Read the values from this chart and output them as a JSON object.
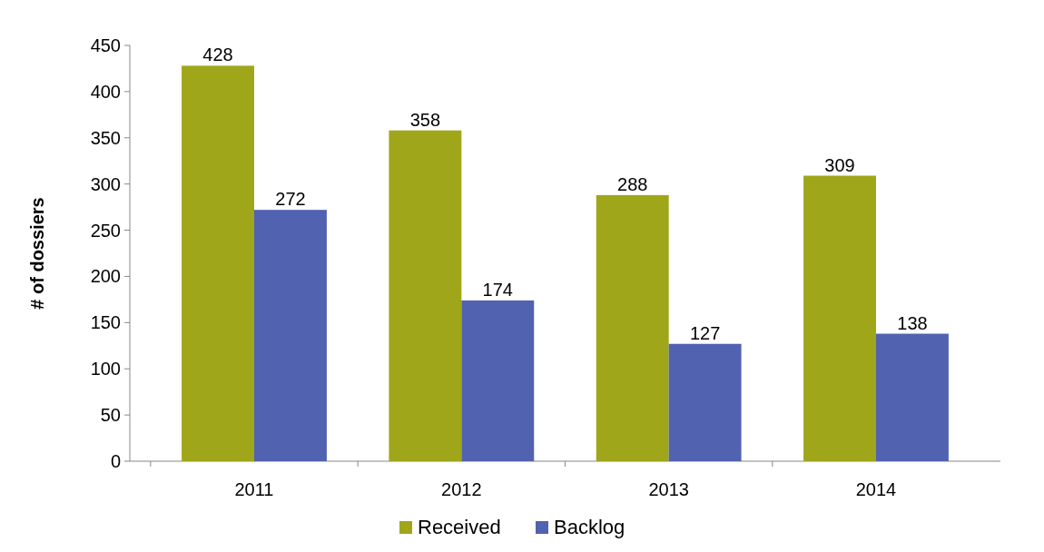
{
  "chart_data": {
    "type": "bar",
    "ylabel": "# of dossiers",
    "categories": [
      "2011",
      "2012",
      "2013",
      "2014"
    ],
    "series": [
      {
        "name": "Received",
        "color": "#a0a61a",
        "values": [
          428,
          358,
          288,
          309
        ]
      },
      {
        "name": "Backlog",
        "color": "#5162b0",
        "values": [
          272,
          174,
          127,
          138
        ]
      }
    ],
    "ylim": [
      0,
      450
    ],
    "yticks": [
      0,
      50,
      100,
      150,
      200,
      250,
      300,
      350,
      400,
      450
    ],
    "data_labels": true,
    "legend": "bottom",
    "grid": false
  }
}
